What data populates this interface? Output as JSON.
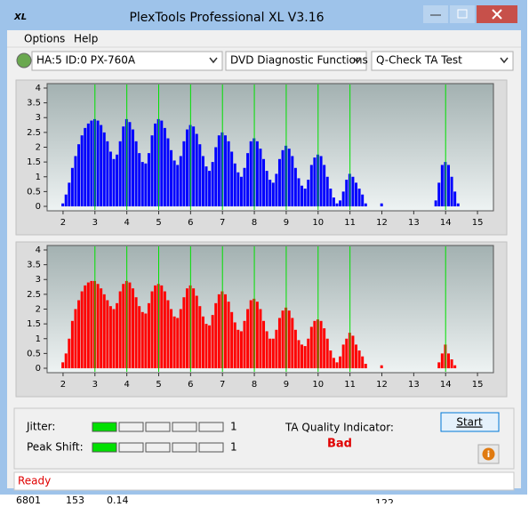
{
  "window": {
    "title": "PlexTools Professional XL V3.16",
    "menu": [
      "Options",
      "Help"
    ],
    "drive": "HA:5 ID:0  PX-760A",
    "function": "DVD Diagnostic Functions",
    "test": "Q-Check TA Test"
  },
  "chart_data": [
    {
      "type": "bar",
      "color": "#0000ff",
      "x": [
        2.0,
        2.1,
        2.2,
        2.3,
        2.4,
        2.5,
        2.6,
        2.7,
        2.8,
        2.9,
        3.0,
        3.1,
        3.2,
        3.3,
        3.4,
        3.5,
        3.6,
        3.7,
        3.8,
        3.9,
        4.0,
        4.1,
        4.2,
        4.3,
        4.4,
        4.5,
        4.6,
        4.7,
        4.8,
        4.9,
        5.0,
        5.1,
        5.2,
        5.3,
        5.4,
        5.5,
        5.6,
        5.7,
        5.8,
        5.9,
        6.0,
        6.1,
        6.2,
        6.3,
        6.4,
        6.5,
        6.6,
        6.7,
        6.8,
        6.9,
        7.0,
        7.1,
        7.2,
        7.3,
        7.4,
        7.5,
        7.6,
        7.7,
        7.8,
        7.9,
        8.0,
        8.1,
        8.2,
        8.3,
        8.4,
        8.5,
        8.6,
        8.7,
        8.8,
        8.9,
        9.0,
        9.1,
        9.2,
        9.3,
        9.4,
        9.5,
        9.6,
        9.7,
        9.8,
        9.9,
        10.0,
        10.1,
        10.2,
        10.3,
        10.4,
        10.5,
        10.6,
        10.7,
        10.8,
        10.9,
        11.0,
        11.1,
        11.2,
        11.3,
        11.4,
        11.5,
        11.6,
        11.7,
        11.8,
        11.9,
        12.0,
        12.1,
        12.2,
        12.3,
        12.4,
        12.5,
        12.6,
        12.7,
        12.8,
        12.9,
        13.0,
        13.1,
        13.2,
        13.3,
        13.4,
        13.5,
        13.6,
        13.7,
        13.8,
        13.9,
        14.0,
        14.1,
        14.2,
        14.3,
        14.4,
        14.5
      ],
      "values": [
        0.1,
        0.4,
        0.8,
        1.3,
        1.7,
        2.1,
        2.4,
        2.65,
        2.8,
        2.9,
        2.95,
        2.9,
        2.75,
        2.5,
        2.2,
        1.85,
        1.6,
        1.75,
        2.2,
        2.7,
        2.95,
        2.85,
        2.6,
        2.2,
        1.8,
        1.5,
        1.45,
        1.8,
        2.4,
        2.8,
        2.95,
        2.9,
        2.65,
        2.3,
        1.9,
        1.55,
        1.4,
        1.7,
        2.2,
        2.6,
        2.75,
        2.7,
        2.45,
        2.1,
        1.7,
        1.35,
        1.2,
        1.5,
        2.0,
        2.4,
        2.5,
        2.4,
        2.2,
        1.85,
        1.45,
        1.15,
        1.0,
        1.3,
        1.8,
        2.2,
        2.3,
        2.2,
        1.95,
        1.6,
        1.2,
        0.9,
        0.8,
        1.1,
        1.6,
        1.9,
        2.05,
        1.95,
        1.7,
        1.3,
        0.95,
        0.7,
        0.6,
        0.9,
        1.4,
        1.65,
        1.75,
        1.7,
        1.4,
        1.0,
        0.6,
        0.3,
        0.1,
        0.2,
        0.5,
        0.9,
        1.1,
        1.0,
        0.8,
        0.6,
        0.4,
        0.1,
        0,
        0,
        0,
        0,
        0.1,
        0,
        0,
        0,
        0,
        0,
        0,
        0,
        0,
        0,
        0,
        0,
        0,
        0,
        0,
        0,
        0,
        0.2,
        0.8,
        1.4,
        1.5,
        1.4,
        1.0,
        0.5,
        0.1,
        0
      ],
      "xlim": [
        1.5,
        15.5
      ],
      "xticks": [
        2,
        3,
        4,
        5,
        6,
        7,
        8,
        9,
        10,
        11,
        12,
        13,
        14,
        15
      ],
      "ylim": [
        -0.15,
        4.15
      ],
      "yticks": [
        0,
        0.5,
        1,
        1.5,
        2,
        2.5,
        3,
        3.5,
        4
      ],
      "reference_lines": [
        3,
        4,
        5,
        6,
        7,
        8,
        9,
        10,
        11,
        14
      ],
      "reference_color": "#00e000"
    },
    {
      "type": "bar",
      "color": "#ff0000",
      "x": [
        2.0,
        2.1,
        2.2,
        2.3,
        2.4,
        2.5,
        2.6,
        2.7,
        2.8,
        2.9,
        3.0,
        3.1,
        3.2,
        3.3,
        3.4,
        3.5,
        3.6,
        3.7,
        3.8,
        3.9,
        4.0,
        4.1,
        4.2,
        4.3,
        4.4,
        4.5,
        4.6,
        4.7,
        4.8,
        4.9,
        5.0,
        5.1,
        5.2,
        5.3,
        5.4,
        5.5,
        5.6,
        5.7,
        5.8,
        5.9,
        6.0,
        6.1,
        6.2,
        6.3,
        6.4,
        6.5,
        6.6,
        6.7,
        6.8,
        6.9,
        7.0,
        7.1,
        7.2,
        7.3,
        7.4,
        7.5,
        7.6,
        7.7,
        7.8,
        7.9,
        8.0,
        8.1,
        8.2,
        8.3,
        8.4,
        8.5,
        8.6,
        8.7,
        8.8,
        8.9,
        9.0,
        9.1,
        9.2,
        9.3,
        9.4,
        9.5,
        9.6,
        9.7,
        9.8,
        9.9,
        10.0,
        10.1,
        10.2,
        10.3,
        10.4,
        10.5,
        10.6,
        10.7,
        10.8,
        10.9,
        11.0,
        11.1,
        11.2,
        11.3,
        11.4,
        11.5,
        11.6,
        11.7,
        11.8,
        11.9,
        12.0,
        12.1,
        12.2,
        12.3,
        12.4,
        12.5,
        12.6,
        12.7,
        12.8,
        12.9,
        13.0,
        13.1,
        13.2,
        13.3,
        13.4,
        13.5,
        13.6,
        13.7,
        13.8,
        13.9,
        14.0,
        14.1,
        14.2,
        14.3,
        14.4,
        14.5
      ],
      "values": [
        0.2,
        0.5,
        1.0,
        1.6,
        2.0,
        2.3,
        2.6,
        2.8,
        2.9,
        2.95,
        2.95,
        2.85,
        2.7,
        2.5,
        2.3,
        2.1,
        2.0,
        2.2,
        2.6,
        2.85,
        2.95,
        2.9,
        2.7,
        2.4,
        2.1,
        1.9,
        1.85,
        2.2,
        2.6,
        2.8,
        2.85,
        2.8,
        2.6,
        2.3,
        2.0,
        1.75,
        1.7,
        2.0,
        2.4,
        2.7,
        2.8,
        2.7,
        2.45,
        2.1,
        1.75,
        1.5,
        1.45,
        1.8,
        2.2,
        2.5,
        2.6,
        2.5,
        2.25,
        1.9,
        1.55,
        1.3,
        1.25,
        1.6,
        2.0,
        2.3,
        2.35,
        2.25,
        2.0,
        1.6,
        1.25,
        1.0,
        1.0,
        1.3,
        1.7,
        1.95,
        2.05,
        1.95,
        1.7,
        1.3,
        0.95,
        0.8,
        0.75,
        1.0,
        1.4,
        1.6,
        1.65,
        1.6,
        1.35,
        1.0,
        0.6,
        0.35,
        0.2,
        0.4,
        0.8,
        1.0,
        1.2,
        1.1,
        0.8,
        0.6,
        0.4,
        0.15,
        0,
        0,
        0,
        0,
        0.1,
        0,
        0,
        0,
        0,
        0,
        0,
        0,
        0,
        0,
        0,
        0,
        0,
        0,
        0,
        0,
        0,
        0,
        0.2,
        0.5,
        0.8,
        0.5,
        0.3,
        0.1,
        0,
        0
      ],
      "xlim": [
        1.5,
        15.5
      ],
      "xticks": [
        2,
        3,
        4,
        5,
        6,
        7,
        8,
        9,
        10,
        11,
        12,
        13,
        14,
        15
      ],
      "ylim": [
        -0.15,
        4.15
      ],
      "yticks": [
        0,
        0.5,
        1,
        1.5,
        2,
        2.5,
        3,
        3.5,
        4
      ],
      "reference_lines": [
        3,
        4,
        5,
        6,
        7,
        8,
        9,
        10,
        11,
        14
      ],
      "reference_color": "#00e000"
    }
  ],
  "panel": {
    "jitter_label": "Jitter:",
    "jitter_value": 1,
    "peak_shift_label": "Peak Shift:",
    "peak_shift_value": 1,
    "quality_label": "TA Quality Indicator:",
    "quality": "Bad",
    "start": "Start"
  },
  "status": "Ready",
  "background_row": [
    "6801",
    "153",
    "0.14",
    "122"
  ]
}
